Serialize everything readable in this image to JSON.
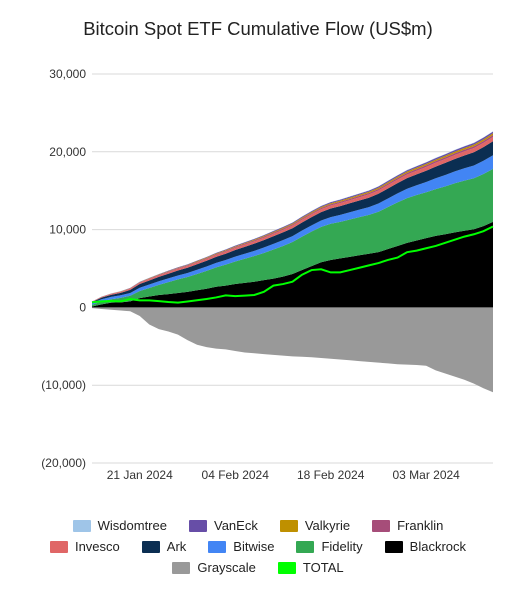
{
  "chart_data": {
    "type": "area",
    "title": "Bitcoin Spot ETF Cumulative Flow (US$m)",
    "xlabel": "",
    "ylabel": "",
    "ylim": [
      -20000,
      30000
    ],
    "y_ticks": [
      30000,
      20000,
      10000,
      0,
      -10000,
      -20000
    ],
    "y_tick_labels": [
      "30,000",
      "20,000",
      "10,000",
      "0",
      "(10,000)",
      "(20,000)"
    ],
    "x_tick_labels": [
      "21 Jan 2024",
      "04 Feb 2024",
      "18 Feb 2024",
      "03 Mar 2024"
    ],
    "x_tick_index": [
      5,
      15,
      25,
      35
    ],
    "grid": true,
    "legend_position": "bottom",
    "dates": [
      "11 Jan 2024",
      "12 Jan 2024",
      "16 Jan 2024",
      "17 Jan 2024",
      "18 Jan 2024",
      "19 Jan 2024",
      "22 Jan 2024",
      "23 Jan 2024",
      "24 Jan 2024",
      "25 Jan 2024",
      "26 Jan 2024",
      "29 Jan 2024",
      "30 Jan 2024",
      "31 Jan 2024",
      "01 Feb 2024",
      "02 Feb 2024",
      "05 Feb 2024",
      "06 Feb 2024",
      "07 Feb 2024",
      "08 Feb 2024",
      "09 Feb 2024",
      "12 Feb 2024",
      "13 Feb 2024",
      "14 Feb 2024",
      "15 Feb 2024",
      "16 Feb 2024",
      "20 Feb 2024",
      "21 Feb 2024",
      "22 Feb 2024",
      "23 Feb 2024",
      "26 Feb 2024",
      "27 Feb 2024",
      "28 Feb 2024",
      "29 Feb 2024",
      "01 Mar 2024",
      "04 Mar 2024",
      "05 Mar 2024",
      "06 Mar 2024",
      "07 Mar 2024",
      "08 Mar 2024",
      "11 Mar 2024",
      "12 Mar 2024",
      "13 Mar 2024"
    ],
    "positive_series": [
      {
        "name": "Blackrock",
        "color": "#000000",
        "values": [
          110,
          390,
          610,
          640,
          770,
          1200,
          1400,
          1600,
          1700,
          1850,
          2000,
          2200,
          2400,
          2650,
          2800,
          3000,
          3150,
          3300,
          3500,
          3700,
          3950,
          4300,
          4800,
          5300,
          5800,
          6100,
          6300,
          6500,
          6700,
          6900,
          7100,
          7500,
          7900,
          8300,
          8600,
          8900,
          9200,
          9400,
          9650,
          9850,
          10050,
          10450,
          11000
        ]
      },
      {
        "name": "Fidelity",
        "color": "#34a853",
        "values": [
          230,
          370,
          440,
          590,
          720,
          900,
          1100,
          1300,
          1550,
          1750,
          1900,
          2100,
          2300,
          2500,
          2700,
          2900,
          3100,
          3300,
          3500,
          3750,
          3950,
          4100,
          4300,
          4450,
          4550,
          4650,
          4700,
          4800,
          4900,
          5000,
          5200,
          5400,
          5600,
          5750,
          5850,
          5900,
          6000,
          6150,
          6300,
          6450,
          6550,
          6700,
          6800
        ]
      },
      {
        "name": "Bitwise",
        "color": "#4285f4",
        "values": [
          240,
          290,
          310,
          330,
          360,
          420,
          440,
          460,
          480,
          500,
          520,
          540,
          560,
          580,
          600,
          630,
          650,
          670,
          700,
          720,
          740,
          760,
          780,
          800,
          820,
          860,
          900,
          930,
          960,
          990,
          1050,
          1100,
          1150,
          1200,
          1250,
          1320,
          1400,
          1470,
          1530,
          1580,
          1640,
          1700,
          1760
        ]
      },
      {
        "name": "Ark",
        "color": "#0b2e52",
        "values": [
          100,
          200,
          250,
          300,
          400,
          480,
          520,
          560,
          600,
          640,
          670,
          700,
          730,
          760,
          800,
          840,
          880,
          920,
          950,
          980,
          1000,
          1020,
          1040,
          1060,
          1080,
          1100,
          1120,
          1150,
          1180,
          1210,
          1250,
          1290,
          1330,
          1370,
          1400,
          1450,
          1500,
          1550,
          1600,
          1650,
          1700,
          1750,
          1800
        ]
      },
      {
        "name": "Invesco",
        "color": "#e06666",
        "values": [
          50,
          80,
          110,
          130,
          150,
          170,
          190,
          200,
          210,
          220,
          230,
          240,
          250,
          260,
          270,
          280,
          290,
          300,
          310,
          320,
          330,
          340,
          350,
          360,
          370,
          380,
          390,
          400,
          410,
          420,
          430,
          440,
          450,
          460,
          470,
          480,
          490,
          500,
          510,
          520,
          530,
          540,
          550
        ]
      },
      {
        "name": "Franklin",
        "color": "#a64d79",
        "values": [
          10,
          20,
          30,
          40,
          50,
          60,
          70,
          75,
          80,
          85,
          90,
          95,
          100,
          105,
          110,
          115,
          120,
          125,
          130,
          135,
          140,
          145,
          150,
          155,
          160,
          165,
          170,
          175,
          180,
          185,
          190,
          195,
          200,
          205,
          210,
          215,
          220,
          225,
          230,
          235,
          240,
          245,
          250
        ]
      },
      {
        "name": "Valkyrie",
        "color": "#bf9000",
        "values": [
          10,
          15,
          20,
          25,
          30,
          35,
          40,
          45,
          50,
          55,
          60,
          65,
          70,
          75,
          80,
          85,
          90,
          95,
          100,
          105,
          110,
          115,
          120,
          125,
          130,
          135,
          140,
          145,
          150,
          155,
          160,
          165,
          170,
          175,
          180,
          185,
          190,
          195,
          200,
          205,
          210,
          215,
          220
        ]
      },
      {
        "name": "VanEck",
        "color": "#674ea7",
        "values": [
          10,
          15,
          20,
          25,
          30,
          35,
          40,
          45,
          50,
          55,
          60,
          65,
          70,
          75,
          80,
          85,
          90,
          95,
          100,
          105,
          110,
          115,
          120,
          125,
          130,
          135,
          140,
          145,
          150,
          155,
          160,
          165,
          170,
          175,
          180,
          185,
          190,
          195,
          200,
          205,
          210,
          215,
          220
        ]
      },
      {
        "name": "Wisdomtree",
        "color": "#9fc5e8",
        "values": [
          2,
          3,
          4,
          5,
          6,
          7,
          8,
          9,
          10,
          11,
          12,
          13,
          14,
          15,
          16,
          17,
          18,
          19,
          20,
          21,
          22,
          23,
          24,
          25,
          26,
          27,
          28,
          29,
          30,
          31,
          32,
          33,
          34,
          35,
          36,
          37,
          38,
          39,
          40,
          41,
          42,
          43,
          44
        ]
      }
    ],
    "negative_series": {
      "name": "Grayscale",
      "color": "#999999",
      "values": [
        -100,
        -200,
        -300,
        -400,
        -500,
        -1100,
        -2200,
        -2800,
        -3100,
        -3500,
        -4200,
        -4800,
        -5100,
        -5300,
        -5400,
        -5600,
        -5800,
        -5900,
        -6000,
        -6100,
        -6200,
        -6300,
        -6350,
        -6400,
        -6500,
        -6600,
        -6700,
        -6800,
        -6900,
        -7000,
        -7100,
        -7200,
        -7300,
        -7350,
        -7400,
        -7500,
        -8100,
        -8500,
        -8900,
        -9300,
        -9800,
        -10400,
        -10900
      ]
    },
    "total_series": {
      "name": "TOTAL",
      "color": "#00ff00",
      "values": [
        660,
        770,
        830,
        780,
        1070,
        910,
        900,
        810,
        700,
        620,
        760,
        920,
        1080,
        1280,
        1540,
        1450,
        1520,
        1600,
        2000,
        2800,
        3000,
        3300,
        4200,
        4800,
        4900,
        4500,
        4500,
        4800,
        5100,
        5400,
        5700,
        6100,
        6400,
        7100,
        7300,
        7600,
        7900,
        8300,
        8700,
        9100,
        9400,
        9800,
        10400
      ]
    },
    "legend": [
      [
        "Wisdomtree",
        "VanEck",
        "Valkyrie",
        "Franklin"
      ],
      [
        "Invesco",
        "Ark",
        "Bitwise",
        "Fidelity",
        "Blackrock"
      ],
      [
        "Grayscale",
        "TOTAL"
      ]
    ]
  }
}
